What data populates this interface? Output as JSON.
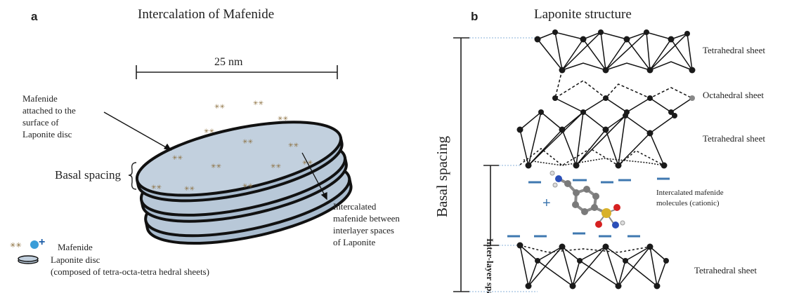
{
  "panel_a": {
    "letter": "a",
    "title": "Intercalation of Mafenide",
    "scale_label": "25 nm",
    "attached_label": [
      "Mafenide",
      "attached to the",
      "surface of",
      "Laponite disc"
    ],
    "basal_spacing_label": "Basal spacing",
    "intercalated_label": [
      "Intercalated",
      "mafenide between",
      "interlayer spaces",
      "of Laponite"
    ],
    "legend": {
      "mafenide": "Mafenide",
      "disc_line1": "Laponite disc",
      "disc_line2": "(composed of tetra-octa-tetra hedral sheets)"
    }
  },
  "panel_b": {
    "letter": "b",
    "title": "Laponite structure",
    "basal_spacing_label": "Basal spacing",
    "interlayer_label": "Inter-layer space",
    "sheets": [
      "Tetrahedral sheet",
      "Octahedral sheet",
      "Tetrahedral sheet",
      "Tetrahedral sheet"
    ],
    "molecules_label": [
      "Intercalated mafenide",
      "molecules (cationic)"
    ]
  },
  "colors": {
    "disc_fill": "#b8c8d8",
    "disc_edge": "#111111",
    "charge_blue": "#3f78b0",
    "atom_dark": "#1a1a1a"
  }
}
